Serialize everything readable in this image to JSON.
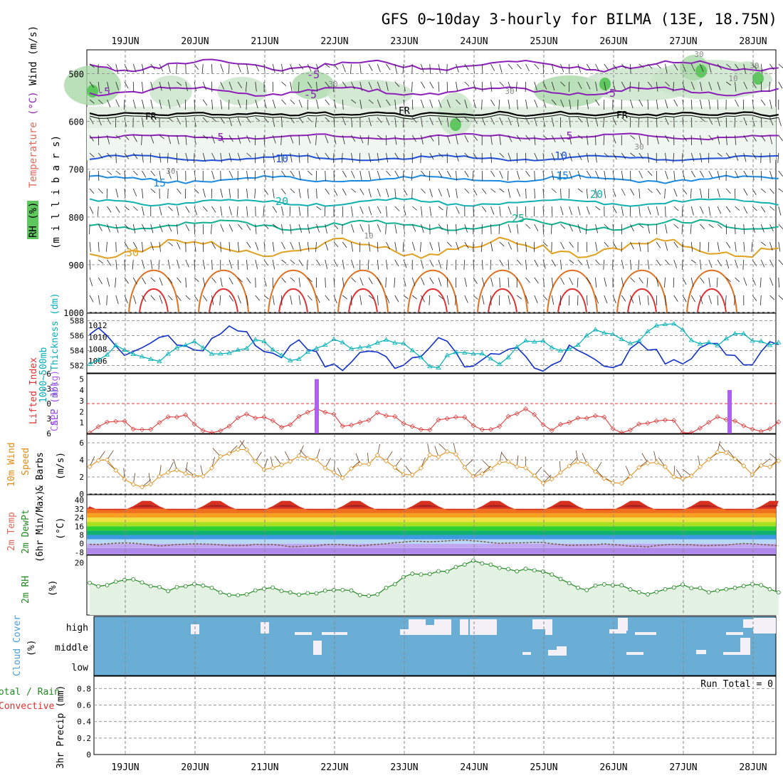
{
  "title": "GFS 0~10day 3-hourly for BILMA (13E, 18.75N)",
  "dates": [
    "19JUN",
    "20JUN",
    "21JUN",
    "22JUN",
    "23JUN",
    "24JUN",
    "25JUN",
    "26JUN",
    "27JUN",
    "28JUN"
  ],
  "colors": {
    "temp_contour": "#8b1fb8",
    "wind_axis": "#333333",
    "thickness": "#00b0b8",
    "slp": "#1030c8",
    "lifted_index": "#e03030",
    "cape": "#b060f0",
    "wind10m": "#e08a10",
    "rh2m": "#208a20",
    "cloud": "#6aaed6",
    "cloud_gap": "#f4f0f8",
    "rh_band": "#d8ead8"
  },
  "labels": {
    "p1_left_rh": "RH (%)",
    "p1_left_temp": "Temperature",
    "p1_left_tempunit": "(°C)",
    "p1_left_wind": "Wind (m/s)",
    "p1_left_mb": "(m i l l i b a r s)",
    "p2_left_thick": "1000~500mb",
    "p2_left_thick2": "Thickness (dm)",
    "p2_left_slp": "SLP (mb)",
    "p3_left_li": "Lifted Index",
    "p3_left_cape": "CAPE (J/kg)",
    "p4_left_a": "10m Wind",
    "p4_left_b": "Speed",
    "p4_left_c": "& Barbs",
    "p4_left_unit": "(m/s)",
    "p5_left_a": "2m Temp",
    "p5_left_b": "2m DewPt",
    "p5_left_c": "(6hr Min/Max)",
    "p5_left_unit": "(°C)",
    "p6_left_a": "2m RH",
    "p6_left_unit": "(%)",
    "p7_left_a": "Cloud Cover",
    "p7_left_unit": "(%)",
    "p8_left_a": "Total / Rain",
    "p8_left_b": "Convective",
    "p8_left_c": "3hr Precip (mm)",
    "run_total": "Run Total = 0",
    "fr": "FR"
  },
  "panels": {
    "pressure": {
      "ticks": [
        500,
        600,
        700,
        800,
        900,
        1000
      ],
      "ylim": [
        450,
        1000
      ]
    },
    "thickness": {
      "left_ticks": [
        582,
        584,
        586,
        588
      ],
      "right_ticks": [
        1006,
        1008,
        1010,
        1012
      ]
    },
    "lifted": {
      "left_ticks": [
        -6,
        -3,
        0,
        3,
        6
      ],
      "cape_ticks": [
        1,
        2,
        3,
        4,
        5
      ]
    },
    "wind10m": {
      "ticks": [
        0,
        2,
        4,
        6
      ]
    },
    "temp2m": {
      "ticks": [
        -8,
        0,
        8,
        16,
        24,
        32,
        40
      ]
    },
    "rh2m": {
      "ticks": [
        20
      ]
    },
    "cloud": {
      "levels": [
        "high",
        "middle",
        "low"
      ]
    },
    "precip": {
      "ticks": [
        0,
        0.2,
        0.4,
        0.6,
        0.8
      ]
    }
  },
  "contour_labels": {
    "temp": [
      "-5",
      "-5",
      "-5",
      "-5",
      "5",
      "5",
      "10",
      "10",
      "15",
      "15",
      "20",
      "20",
      "25",
      "30"
    ],
    "rh": [
      "30",
      "30",
      "30",
      "10",
      "30",
      "30",
      "10",
      "30"
    ]
  },
  "chart_data": [
    {
      "type": "line",
      "title": "1000~500mb Thickness (dm) / SLP (mb)",
      "x": [
        "19JUN",
        "20JUN",
        "21JUN",
        "22JUN",
        "23JUN",
        "24JUN",
        "25JUN",
        "26JUN",
        "27JUN",
        "28JUN"
      ],
      "series": [
        {
          "name": "SLP (mb)",
          "values": [
            1009.5,
            1008.3,
            1010.3,
            1007.0,
            1006.1,
            1007.6,
            1006.3,
            1006.4,
            1006.8,
            1007.4
          ]
        },
        {
          "name": "1000~500mb Thickness (dm)",
          "values": [
            583.6,
            583.3,
            584.5,
            583.4,
            585.2,
            582.8,
            583.7,
            585.4,
            586.7,
            585.4
          ]
        }
      ]
    },
    {
      "type": "line",
      "title": "Lifted Index / CAPE (J/kg)",
      "x": [
        "19JUN",
        "20JUN",
        "21JUN",
        "22JUN",
        "23JUN",
        "24JUN",
        "25JUN",
        "26JUN",
        "27JUN",
        "28JUN"
      ],
      "series": [
        {
          "name": "Lifted Index",
          "values": [
            5.8,
            3.5,
            4.5,
            2.5,
            3.0,
            4.0,
            3.0,
            3.5,
            4.5,
            4.2
          ]
        },
        {
          "name": "CAPE (J/kg)",
          "values": [
            0,
            0,
            0,
            0,
            5,
            0,
            0,
            0,
            0,
            4
          ]
        }
      ]
    },
    {
      "type": "line",
      "title": "10m Wind Speed & Barbs (m/s)",
      "x": [
        "19JUN",
        "20JUN",
        "21JUN",
        "22JUN",
        "23JUN",
        "24JUN",
        "25JUN",
        "26JUN",
        "27JUN",
        "28JUN"
      ],
      "series": [
        {
          "name": "10m Wind Speed",
          "values": [
            3.0,
            1.6,
            4.4,
            3.6,
            3.2,
            4.0,
            2.8,
            2.4,
            2.4,
            3.6
          ]
        }
      ]
    },
    {
      "type": "area",
      "title": "2m Temp / 2m DewPt (°C)",
      "x": [
        "19JUN",
        "20JUN",
        "21JUN",
        "22JUN",
        "23JUN",
        "24JUN",
        "25JUN",
        "26JUN",
        "27JUN",
        "28JUN"
      ],
      "series": [
        {
          "name": "2m Temp max",
          "values": [
            38,
            39,
            39,
            40,
            40,
            40,
            40,
            40,
            41,
            41
          ]
        },
        {
          "name": "2m DewPt",
          "values": [
            0,
            -1,
            -1,
            -2,
            -1,
            3,
            1,
            -1,
            -2,
            -1
          ]
        }
      ]
    },
    {
      "type": "area",
      "title": "2m RH (%)",
      "x": [
        "19JUN",
        "20JUN",
        "21JUN",
        "22JUN",
        "23JUN",
        "24JUN",
        "25JUN",
        "26JUN",
        "27JUN",
        "28JUN"
      ],
      "series": [
        {
          "name": "2m RH",
          "values": [
            13,
            12,
            10,
            10,
            9,
            18,
            19,
            12,
            10,
            11
          ]
        }
      ]
    },
    {
      "type": "bar",
      "title": "3hr Precip (mm)",
      "x": [
        "19JUN",
        "20JUN",
        "21JUN",
        "22JUN",
        "23JUN",
        "24JUN",
        "25JUN",
        "26JUN",
        "27JUN",
        "28JUN"
      ],
      "series": [
        {
          "name": "Total / Rain",
          "values": [
            0,
            0,
            0,
            0,
            0,
            0,
            0,
            0,
            0,
            0
          ]
        },
        {
          "name": "Convective",
          "values": [
            0,
            0,
            0,
            0,
            0,
            0,
            0,
            0,
            0,
            0
          ]
        }
      ]
    }
  ]
}
